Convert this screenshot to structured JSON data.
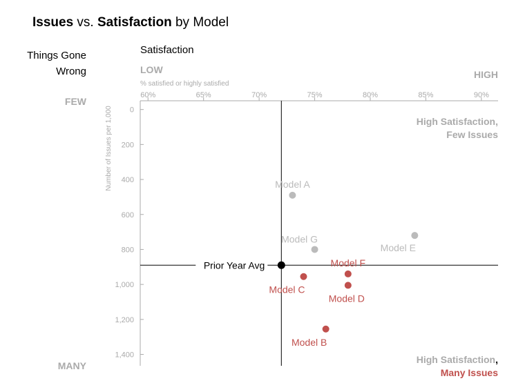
{
  "chart_data": {
    "type": "scatter",
    "title": {
      "part1": "Issues",
      "part2": " vs. ",
      "part3": "Satisfaction",
      "part4": " by Model"
    },
    "left_title": {
      "line1": "Things Gone",
      "line2": "Wrong"
    },
    "xlabel": "Satisfaction",
    "x_low_label": "LOW",
    "x_high_label": "HIGH",
    "x_sublabel": "% satisfied or highly satisfied",
    "ylabel": "Number of Issues per 1,000",
    "y_few_label": "FEW",
    "y_many_label": "MANY",
    "xlim": [
      59.3,
      91.5
    ],
    "ylim": [
      -50,
      1465
    ],
    "x_ticks": [
      {
        "value": 60,
        "label": "60%"
      },
      {
        "value": 65,
        "label": "65%"
      },
      {
        "value": 70,
        "label": "70%"
      },
      {
        "value": 75,
        "label": "75%"
      },
      {
        "value": 80,
        "label": "80%"
      },
      {
        "value": 85,
        "label": "85%"
      },
      {
        "value": 90,
        "label": "90%"
      }
    ],
    "y_ticks": [
      {
        "value": 0,
        "label": "0"
      },
      {
        "value": 200,
        "label": "200"
      },
      {
        "value": 400,
        "label": "400"
      },
      {
        "value": 600,
        "label": "600"
      },
      {
        "value": 800,
        "label": "800"
      },
      {
        "value": 1000,
        "label": "1,000"
      },
      {
        "value": 1200,
        "label": "1,200"
      },
      {
        "value": 1400,
        "label": "1,400"
      }
    ],
    "points": [
      {
        "name": "Model A",
        "x": 73,
        "y": 490,
        "highlight": false,
        "label_pos": "above"
      },
      {
        "name": "Model G",
        "x": 75,
        "y": 800,
        "highlight": false,
        "label_pos": "upper-left"
      },
      {
        "name": "Model E",
        "x": 84,
        "y": 720,
        "highlight": false,
        "label_pos": "lower-left"
      },
      {
        "name": "Model F",
        "x": 78,
        "y": 940,
        "highlight": true,
        "label_pos": "above"
      },
      {
        "name": "Model C",
        "x": 74,
        "y": 955,
        "highlight": true,
        "label_pos": "below-left"
      },
      {
        "name": "Model D",
        "x": 78,
        "y": 1005,
        "highlight": true,
        "label_pos": "below"
      },
      {
        "name": "Model B",
        "x": 76,
        "y": 1255,
        "highlight": true,
        "label_pos": "below-left"
      }
    ],
    "reference": {
      "label": "Prior Year Avg",
      "x": 72,
      "y": 890
    },
    "annotation_top": {
      "line1": "High Satisfaction,",
      "line2": "Few Issues"
    },
    "annotation_bottom": {
      "line1a": "High Satisfaction",
      "line1b": ",",
      "line2": "Many Issues"
    },
    "colors": {
      "title": "#000000",
      "muted": "#aaaaaa",
      "axis": "#aaaaaa",
      "grey_point": "#bbbbbb",
      "highlight": "#c0504d",
      "reference": "#000000"
    }
  }
}
